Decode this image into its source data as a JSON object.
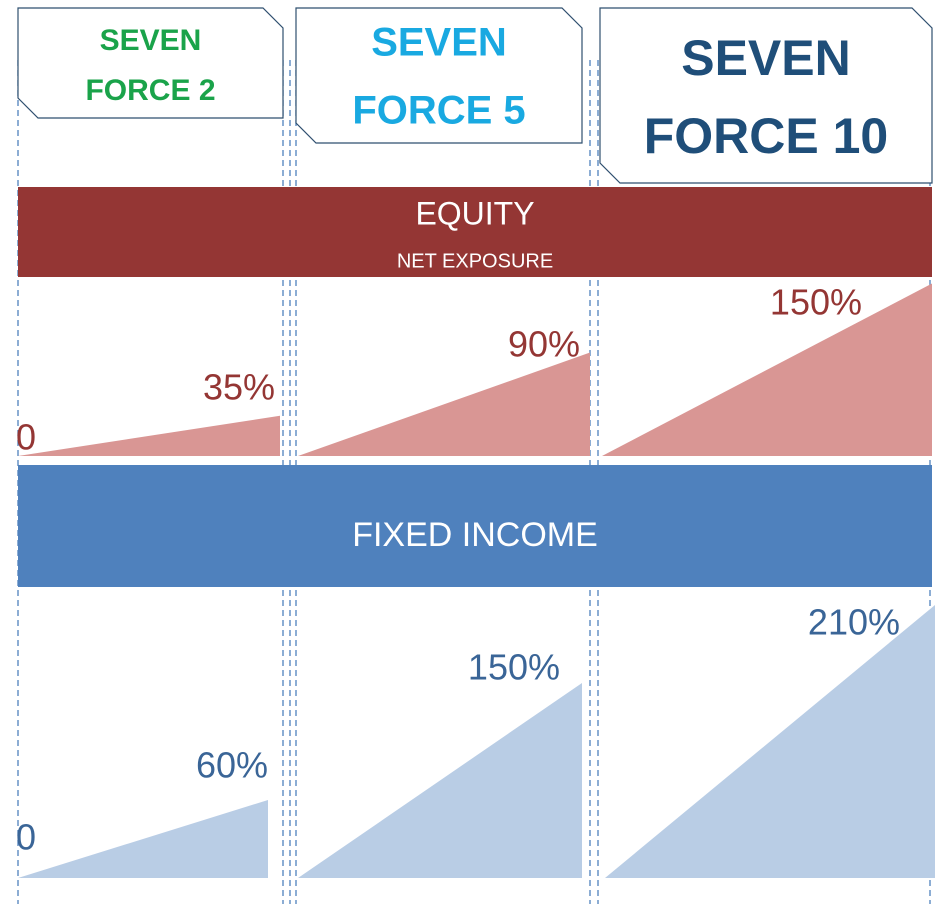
{
  "products": [
    {
      "lines": [
        "SEVEN",
        "FORCE 2"
      ],
      "color": "#1aa34a"
    },
    {
      "lines": [
        "SEVEN",
        "FORCE 5"
      ],
      "color": "#19a9e1"
    },
    {
      "lines": [
        "SEVEN",
        "FORCE 10"
      ],
      "color": "#1f4e79"
    }
  ],
  "equity": {
    "title": "EQUITY",
    "subtitle": "NET EXPOSURE",
    "start": 0,
    "values": [
      35,
      90,
      150
    ],
    "value_labels": [
      "35%",
      "90%",
      "150%"
    ],
    "band_color": "#943634",
    "fill": "#d99694",
    "label_color": "#943634"
  },
  "fixed_income": {
    "title": "FIXED INCOME",
    "start": 0,
    "values": [
      60,
      150,
      210
    ],
    "value_labels": [
      "60%",
      "150%",
      "210%"
    ],
    "band_color": "#4f81bd",
    "fill": "#b9cde5",
    "label_color": "#3a6597"
  }
}
